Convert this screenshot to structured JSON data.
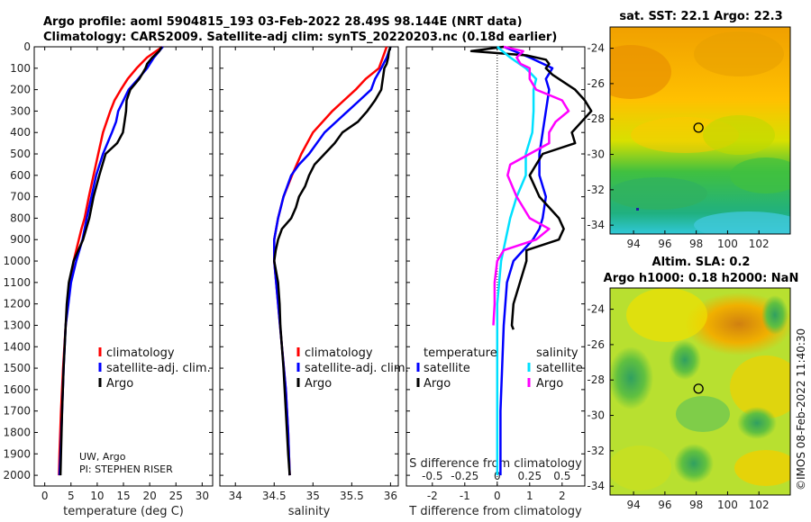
{
  "header": {
    "line1": "Argo profile: aoml 5904815_193 03-Feb-2022 28.49S 98.144E (NRT data)",
    "line2": "Climatology: CARS2009. Satellite-adj clim: synTS_20220203.nc (0.18d earlier)"
  },
  "colors": {
    "climatology": "#ff0000",
    "satellite": "#0000ff",
    "argo": "#000000",
    "sat_t": "#00e0ff",
    "sat_s": "#ff00ff"
  },
  "attribution": {
    "line1": "UW, Argo",
    "line2": "PI: STEPHEN RISER"
  },
  "imos_stamp": "©IMOS 08-Feb-2022 11:40:30",
  "depth_ticks": [
    "0",
    "100",
    "200",
    "300",
    "400",
    "500",
    "600",
    "700",
    "800",
    "900",
    "1000",
    "1100",
    "1200",
    "1300",
    "1400",
    "1500",
    "1600",
    "1700",
    "1800",
    "1900",
    "2000"
  ],
  "chart_data": [
    {
      "id": "temperature",
      "type": "line",
      "xlabel": "temperature (deg C)",
      "ylabel": "depth",
      "xlim": [
        -2,
        32
      ],
      "ylim": [
        2050,
        0
      ],
      "xticks": [
        0,
        5,
        10,
        15,
        20,
        25,
        30
      ],
      "xtick_labels": [
        "0",
        "5",
        "10",
        "15",
        "20",
        "25",
        "30"
      ],
      "legend": [
        "climatology",
        "satellite-adj. clim.",
        "Argo"
      ],
      "series": [
        {
          "name": "climatology",
          "color": "#ff0000",
          "depth": [
            0,
            50,
            100,
            150,
            200,
            250,
            300,
            400,
            500,
            600,
            700,
            800,
            850,
            900,
            950,
            1000,
            1100,
            1200,
            1300,
            1500,
            1700,
            1900,
            2000
          ],
          "values": [
            22.4,
            19.5,
            17.5,
            15.8,
            14.5,
            13.3,
            12.5,
            11.1,
            10.2,
            9.3,
            8.4,
            7.6,
            7.0,
            6.5,
            6.0,
            5.5,
            4.9,
            4.4,
            4.0,
            3.5,
            3.1,
            2.8,
            2.7
          ]
        },
        {
          "name": "satellite-adj. clim.",
          "color": "#0000ff",
          "depth": [
            0,
            50,
            100,
            150,
            200,
            250,
            300,
            350,
            400,
            500,
            600,
            700,
            800,
            900,
            1000,
            1100,
            1200,
            1300,
            1500,
            1700,
            1900,
            2000
          ],
          "values": [
            22.5,
            20.8,
            19.5,
            17.8,
            16.0,
            15.0,
            14.0,
            13.6,
            12.8,
            11.1,
            9.8,
            8.9,
            8.0,
            7.2,
            6.0,
            5.0,
            4.5,
            4.0,
            3.6,
            3.3,
            3.0,
            2.8
          ]
        },
        {
          "name": "Argo",
          "color": "#000000",
          "depth": [
            0,
            20,
            50,
            80,
            100,
            130,
            150,
            200,
            250,
            300,
            350,
            400,
            450,
            500,
            550,
            600,
            700,
            800,
            900,
            950,
            1000,
            1100,
            1200,
            1300,
            1500,
            1700,
            1900,
            2000
          ],
          "values": [
            22.3,
            21.8,
            20.5,
            19.5,
            19.2,
            18.5,
            18.0,
            16.3,
            15.6,
            15.5,
            15.2,
            14.9,
            13.8,
            11.6,
            11.0,
            10.4,
            9.3,
            8.5,
            7.3,
            6.4,
            5.5,
            4.6,
            4.2,
            4.0,
            3.6,
            3.3,
            3.1,
            3.0
          ]
        }
      ]
    },
    {
      "id": "salinity",
      "type": "line",
      "xlabel": "salinity",
      "ylabel": "depth",
      "xlim": [
        33.8,
        36.1
      ],
      "ylim": [
        2050,
        0
      ],
      "xticks": [
        34,
        34.5,
        35,
        35.5,
        36
      ],
      "xtick_labels": [
        "34",
        "34.5",
        "35",
        "35.5",
        "36"
      ],
      "legend": [
        "climatology",
        "satellite-adj. clim.",
        "Argo"
      ],
      "series": [
        {
          "name": "climatology",
          "color": "#ff0000",
          "depth": [
            0,
            50,
            100,
            150,
            200,
            250,
            300,
            400,
            500,
            600,
            700,
            800,
            900,
            1000,
            1200,
            1400,
            1600,
            1800,
            2000
          ],
          "values": [
            35.95,
            35.9,
            35.85,
            35.68,
            35.55,
            35.4,
            35.25,
            35.0,
            34.85,
            34.73,
            34.62,
            34.55,
            34.5,
            34.5,
            34.55,
            34.6,
            34.65,
            34.68,
            34.7
          ]
        },
        {
          "name": "satellite-adj. clim.",
          "color": "#0000ff",
          "depth": [
            0,
            50,
            100,
            150,
            200,
            250,
            300,
            400,
            500,
            550,
            600,
            700,
            800,
            900,
            1000,
            1200,
            1400,
            1600,
            1800,
            2000
          ],
          "values": [
            36.0,
            35.95,
            35.88,
            35.8,
            35.75,
            35.6,
            35.45,
            35.15,
            34.95,
            34.82,
            34.72,
            34.62,
            34.55,
            34.5,
            34.5,
            34.55,
            34.6,
            34.65,
            34.68,
            34.7
          ]
        },
        {
          "name": "Argo",
          "color": "#000000",
          "depth": [
            0,
            20,
            50,
            80,
            100,
            150,
            200,
            250,
            300,
            350,
            400,
            450,
            500,
            550,
            600,
            650,
            700,
            750,
            800,
            850,
            900,
            950,
            1000,
            1100,
            1200,
            1300,
            1500,
            1700,
            1900,
            2000
          ],
          "values": [
            36.0,
            35.98,
            35.97,
            35.95,
            35.92,
            35.9,
            35.88,
            35.8,
            35.7,
            35.58,
            35.38,
            35.28,
            35.15,
            35.02,
            34.95,
            34.9,
            34.82,
            34.78,
            34.72,
            34.6,
            34.55,
            34.52,
            34.5,
            34.55,
            34.57,
            34.58,
            34.62,
            34.65,
            34.68,
            34.7
          ]
        }
      ]
    },
    {
      "id": "differences",
      "type": "line",
      "xlabel": "T difference from climatology",
      "xlabel_top": "S difference from climatology",
      "xlim": [
        -2.8,
        2.7
      ],
      "ylim": [
        2050,
        0
      ],
      "xticks": [
        -2,
        -1,
        0,
        1,
        2
      ],
      "xtick_labels": [
        "-2",
        "-1",
        "0",
        "1",
        "2"
      ],
      "xticks_s": [
        -0.5,
        -0.25,
        0,
        0.25,
        0.5
      ],
      "xtick_labels_s": [
        "-0.5",
        "-0.25",
        "0",
        "0.25",
        "0.5"
      ],
      "legend_headers": [
        "temperature",
        "salinity"
      ],
      "legend_t": [
        "satellite",
        "Argo"
      ],
      "legend_s": [
        "satellite",
        "Argo"
      ],
      "series": [
        {
          "name": "T satellite",
          "color": "#0000ff",
          "depth": [
            0,
            50,
            100,
            150,
            200,
            300,
            400,
            500,
            600,
            700,
            750,
            800,
            850,
            900,
            950,
            1000,
            1100,
            1300,
            1500,
            1700,
            2000
          ],
          "values": [
            0.2,
            1.0,
            1.7,
            1.5,
            1.6,
            1.5,
            1.4,
            1.3,
            1.3,
            1.5,
            1.45,
            1.4,
            1.3,
            1.1,
            0.8,
            0.5,
            0.3,
            0.2,
            0.15,
            0.1,
            0.1
          ]
        },
        {
          "name": "T Argo",
          "color": "#000000",
          "depth": [
            0,
            20,
            40,
            60,
            80,
            100,
            130,
            160,
            200,
            250,
            300,
            400,
            450,
            500,
            600,
            700,
            800,
            850,
            900,
            950,
            1000,
            1100,
            1200,
            1300,
            1320
          ],
          "values": [
            0.2,
            -0.8,
            0.9,
            1.5,
            1.6,
            1.5,
            1.7,
            2.0,
            2.4,
            2.7,
            2.9,
            2.3,
            2.4,
            1.4,
            1.0,
            1.3,
            1.9,
            2.05,
            1.9,
            0.9,
            0.9,
            0.7,
            0.5,
            0.45,
            0.5
          ]
        },
        {
          "name": "S satellite",
          "color": "#00e0ff",
          "depth": [
            0,
            50,
            100,
            150,
            200,
            300,
            400,
            500,
            600,
            700,
            800,
            1000,
            1200,
            1400,
            1600,
            1800,
            2000
          ],
          "values": [
            0.0,
            0.1,
            0.22,
            0.3,
            0.28,
            0.28,
            0.27,
            0.22,
            0.22,
            0.15,
            0.1,
            0.03,
            0.0,
            0.0,
            0.0,
            0.0,
            0.0
          ]
        },
        {
          "name": "S Argo",
          "color": "#ff00ff",
          "depth": [
            0,
            20,
            50,
            80,
            100,
            150,
            200,
            250,
            300,
            350,
            400,
            450,
            500,
            550,
            600,
            700,
            800,
            850,
            900,
            950,
            1000,
            1100,
            1200,
            1300
          ],
          "values": [
            0.05,
            0.2,
            0.15,
            0.18,
            0.25,
            0.25,
            0.3,
            0.5,
            0.55,
            0.45,
            0.4,
            0.4,
            0.25,
            0.1,
            0.08,
            0.15,
            0.25,
            0.4,
            0.3,
            0.05,
            0.0,
            -0.02,
            -0.02,
            -0.03
          ]
        }
      ]
    }
  ],
  "maps": [
    {
      "id": "sst",
      "title": "sat. SST: 22.1 Argo: 22.3",
      "title2": "",
      "lon_ticks": [
        "94",
        "96",
        "98",
        "100",
        "102"
      ],
      "lat_ticks": [
        "-24",
        "-26",
        "-28",
        "-30",
        "-32",
        "-34"
      ],
      "lon_values": [
        94,
        96,
        98,
        100,
        102
      ],
      "lat_values": [
        -24,
        -26,
        -28,
        -30,
        -32,
        -34
      ],
      "profile_lon": 98.144,
      "profile_lat": -28.49
    },
    {
      "id": "sla",
      "title": "Altim. SLA: 0.2",
      "title2": "Argo h1000: 0.18 h2000: NaN",
      "lon_ticks": [
        "94",
        "96",
        "98",
        "100",
        "102"
      ],
      "lat_ticks": [
        "-24",
        "-26",
        "-28",
        "-30",
        "-32",
        "-34"
      ],
      "lon_values": [
        94,
        96,
        98,
        100,
        102
      ],
      "lat_values": [
        -24,
        -26,
        -28,
        -30,
        -32,
        -34
      ],
      "profile_lon": 98.144,
      "profile_lat": -28.49
    }
  ]
}
